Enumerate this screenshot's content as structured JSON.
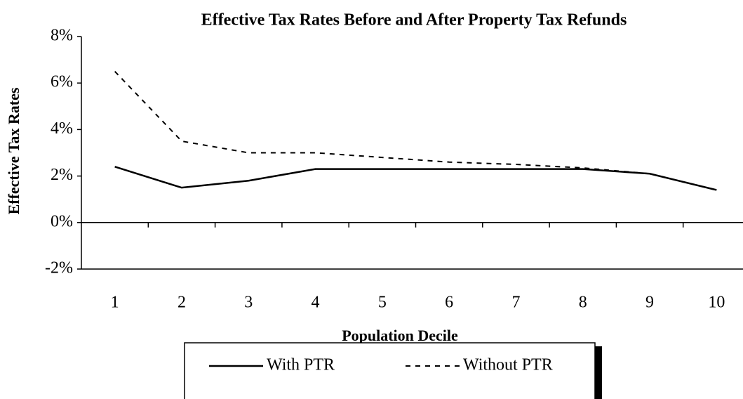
{
  "chart_data": {
    "type": "line",
    "title": "Effective Tax Rates Before and After Property Tax Refunds",
    "x_label": "Population Decile",
    "y_label": "Effective Tax Rates",
    "categories": [
      "1",
      "2",
      "3",
      "4",
      "5",
      "6",
      "7",
      "8",
      "9",
      "10"
    ],
    "series": [
      {
        "name": "With PTR",
        "color": "#000000",
        "dash": false,
        "values": [
          2.4,
          1.5,
          1.8,
          2.3,
          2.3,
          2.3,
          2.3,
          2.3,
          2.1,
          1.4
        ]
      },
      {
        "name": "Without PTR",
        "color": "#000000",
        "dash": true,
        "values": [
          6.5,
          3.5,
          3.0,
          3.0,
          2.8,
          2.6,
          2.5,
          2.35,
          2.1,
          1.4
        ]
      }
    ],
    "ylim": [
      -2,
      8
    ],
    "yticks": [
      {
        "value": -2,
        "label": "-2%"
      },
      {
        "value": 0,
        "label": "0%"
      },
      {
        "value": 2,
        "label": "2%"
      },
      {
        "value": 4,
        "label": "4%"
      },
      {
        "value": 6,
        "label": "6%"
      },
      {
        "value": 8,
        "label": "8%"
      }
    ],
    "legend": "bottom"
  }
}
